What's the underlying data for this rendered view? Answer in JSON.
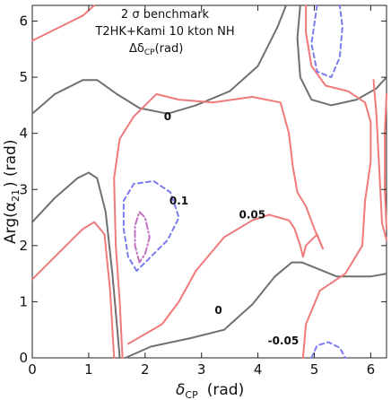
{
  "chart_data": {
    "type": "contour",
    "title_lines": [
      "2 σ benchmark",
      "T2HK+Kami 10 kton NH",
      "Δδ"
    ],
    "title_sub": "CP",
    "title_tail": "(rad)",
    "xlabel": "δ",
    "xlabel_sub": "CP",
    "xlabel_unit": "(rad)",
    "ylabel": "Arg(α",
    "ylabel_sub": "21",
    "ylabel_unit": ") (rad)",
    "xlim": [
      0,
      6.28
    ],
    "ylim": [
      0,
      6.28
    ],
    "xticks": [
      "0",
      "1",
      "2",
      "3",
      "4",
      "5",
      "6"
    ],
    "yticks": [
      "0",
      "1",
      "2",
      "3",
      "4",
      "5",
      "6"
    ],
    "colors": {
      "zero": "#707070",
      "pos_red": "#f07a7a",
      "dash_blue": "#7b7bf0",
      "dashdot_magenta": "#c070c0"
    },
    "contour_labels": [
      {
        "text": "0",
        "x": 2.4,
        "y": 4.3
      },
      {
        "text": "0.1",
        "x": 2.6,
        "y": 2.8
      },
      {
        "text": "0.05",
        "x": 3.9,
        "y": 2.55
      },
      {
        "text": "0",
        "x": 3.3,
        "y": 0.85
      },
      {
        "text": "-0.05",
        "x": 4.45,
        "y": 0.3
      }
    ],
    "series": [
      {
        "level": "0",
        "style": "solid",
        "color": "#707070",
        "points": [
          [
            0,
            4.35
          ],
          [
            0.4,
            4.7
          ],
          [
            0.9,
            4.95
          ],
          [
            1.15,
            4.95
          ],
          [
            1.5,
            4.7
          ],
          [
            1.9,
            4.45
          ],
          [
            2.4,
            4.35
          ],
          [
            2.9,
            4.5
          ],
          [
            3.5,
            4.75
          ],
          [
            4.0,
            5.2
          ],
          [
            4.35,
            5.9
          ],
          [
            4.5,
            6.28
          ]
        ]
      },
      {
        "level": "0",
        "style": "solid",
        "color": "#707070",
        "points": [
          [
            0,
            2.42
          ],
          [
            0.4,
            2.85
          ],
          [
            0.8,
            3.2
          ],
          [
            1.0,
            3.3
          ],
          [
            1.15,
            3.2
          ],
          [
            1.3,
            2.6
          ],
          [
            1.42,
            1.5
          ],
          [
            1.5,
            0.6
          ],
          [
            1.55,
            0
          ]
        ]
      },
      {
        "level": "0",
        "style": "solid",
        "color": "#707070",
        "points": [
          [
            1.65,
            0
          ],
          [
            2.1,
            0.2
          ],
          [
            2.8,
            0.35
          ],
          [
            3.4,
            0.5
          ],
          [
            3.9,
            0.95
          ],
          [
            4.3,
            1.45
          ],
          [
            4.6,
            1.7
          ],
          [
            4.78,
            1.7
          ]
        ]
      },
      {
        "level": "0",
        "style": "solid",
        "color": "#707070",
        "points": [
          [
            4.75,
            6.28
          ],
          [
            4.7,
            5.7
          ],
          [
            4.75,
            5.0
          ],
          [
            4.95,
            4.6
          ],
          [
            5.3,
            4.5
          ],
          [
            5.75,
            4.6
          ],
          [
            6.1,
            4.8
          ],
          [
            6.28,
            5.0
          ]
        ]
      },
      {
        "level": "0",
        "style": "solid",
        "color": "#707070",
        "points": [
          [
            4.78,
            1.7
          ],
          [
            5.4,
            1.45
          ],
          [
            6.0,
            1.45
          ],
          [
            6.28,
            1.5
          ]
        ]
      },
      {
        "level": "0.05",
        "style": "solid",
        "color": "#f07a7a",
        "points": [
          [
            0,
            5.65
          ],
          [
            0.4,
            5.85
          ],
          [
            0.9,
            6.1
          ],
          [
            1.1,
            6.28
          ]
        ]
      },
      {
        "level": "0.05",
        "style": "solid",
        "color": "#f07a7a",
        "points": [
          [
            0,
            1.4
          ],
          [
            0.5,
            1.9
          ],
          [
            0.9,
            2.3
          ],
          [
            1.1,
            2.42
          ],
          [
            1.28,
            2.2
          ],
          [
            1.38,
            1.2
          ],
          [
            1.45,
            0
          ]
        ]
      },
      {
        "level": "0.05",
        "style": "solid",
        "color": "#f07a7a",
        "points": [
          [
            1.7,
            0.25
          ],
          [
            2.3,
            0.6
          ],
          [
            2.6,
            1.0
          ],
          [
            2.9,
            1.55
          ],
          [
            3.4,
            2.15
          ],
          [
            3.9,
            2.45
          ],
          [
            4.2,
            2.55
          ],
          [
            4.55,
            2.45
          ],
          [
            4.65,
            2.3
          ],
          [
            4.75,
            2.0
          ],
          [
            4.8,
            1.8
          ],
          [
            4.85,
            2.0
          ],
          [
            5.05,
            2.2
          ],
          [
            5.15,
            1.95
          ]
        ]
      },
      {
        "level": "0.05",
        "style": "solid",
        "color": "#f07a7a",
        "points": [
          [
            5.15,
            1.95
          ],
          [
            5.0,
            2.3
          ],
          [
            4.85,
            2.7
          ],
          [
            4.7,
            2.95
          ],
          [
            4.62,
            3.4
          ],
          [
            4.55,
            4.0
          ],
          [
            4.4,
            4.55
          ],
          [
            3.9,
            4.65
          ],
          [
            3.2,
            4.55
          ],
          [
            2.6,
            4.6
          ],
          [
            2.2,
            4.7
          ],
          [
            1.8,
            4.3
          ],
          [
            1.55,
            3.9
          ],
          [
            1.45,
            3.2
          ],
          [
            1.48,
            2.0
          ],
          [
            1.55,
            1.0
          ],
          [
            1.6,
            0
          ]
        ]
      },
      {
        "level": "0.05",
        "style": "solid",
        "color": "#f07a7a",
        "points": [
          [
            4.85,
            6.28
          ],
          [
            4.85,
            5.8
          ],
          [
            4.95,
            5.2
          ],
          [
            5.2,
            4.85
          ],
          [
            5.6,
            4.75
          ],
          [
            5.9,
            4.55
          ],
          [
            6.0,
            4.2
          ],
          [
            6.0,
            3.5
          ],
          [
            5.9,
            2.8
          ],
          [
            5.85,
            2.0
          ],
          [
            5.55,
            1.5
          ],
          [
            5.1,
            1.2
          ],
          [
            4.85,
            0.6
          ],
          [
            4.8,
            0
          ]
        ]
      },
      {
        "level": "0.05",
        "style": "solid",
        "color": "#f07a7a",
        "points": [
          [
            6.05,
            4.95
          ],
          [
            6.1,
            4.35
          ],
          [
            6.15,
            3.4
          ],
          [
            6.2,
            2.4
          ],
          [
            6.28,
            2.1
          ]
        ]
      },
      {
        "level": "0.05",
        "style": "solid",
        "color": "#f07a7a",
        "points": [
          [
            6.28,
            4.7
          ],
          [
            6.25,
            4.0
          ],
          [
            6.25,
            3.0
          ],
          [
            6.28,
            2.3
          ]
        ]
      },
      {
        "level": "0.1",
        "style": "dashed",
        "color": "#7b7bf0",
        "points": [
          [
            1.85,
            1.55
          ],
          [
            1.7,
            1.8
          ],
          [
            1.62,
            2.3
          ],
          [
            1.62,
            2.8
          ],
          [
            1.8,
            3.1
          ],
          [
            2.15,
            3.15
          ],
          [
            2.45,
            2.95
          ],
          [
            2.6,
            2.5
          ],
          [
            2.4,
            2.1
          ],
          [
            2.1,
            1.8
          ],
          [
            1.85,
            1.55
          ]
        ]
      },
      {
        "level": "0.1",
        "style": "dashed",
        "color": "#7b7bf0",
        "points": [
          [
            5.05,
            6.28
          ],
          [
            4.95,
            5.6
          ],
          [
            5.05,
            5.1
          ],
          [
            5.3,
            5.0
          ],
          [
            5.45,
            5.35
          ],
          [
            5.5,
            5.9
          ],
          [
            5.45,
            6.28
          ]
        ]
      },
      {
        "level": "0.15",
        "style": "dashdot",
        "color": "#c070c0",
        "points": [
          [
            1.9,
            1.7
          ],
          [
            1.82,
            2.0
          ],
          [
            1.82,
            2.35
          ],
          [
            1.9,
            2.6
          ],
          [
            2.0,
            2.5
          ],
          [
            2.08,
            2.15
          ],
          [
            2.0,
            1.85
          ],
          [
            1.9,
            1.7
          ]
        ]
      },
      {
        "level": "-0.05",
        "style": "dashed",
        "color": "#7b7bf0",
        "points": [
          [
            4.95,
            0
          ],
          [
            5.05,
            0.22
          ],
          [
            5.25,
            0.28
          ],
          [
            5.45,
            0.18
          ],
          [
            5.55,
            0
          ]
        ]
      }
    ]
  }
}
